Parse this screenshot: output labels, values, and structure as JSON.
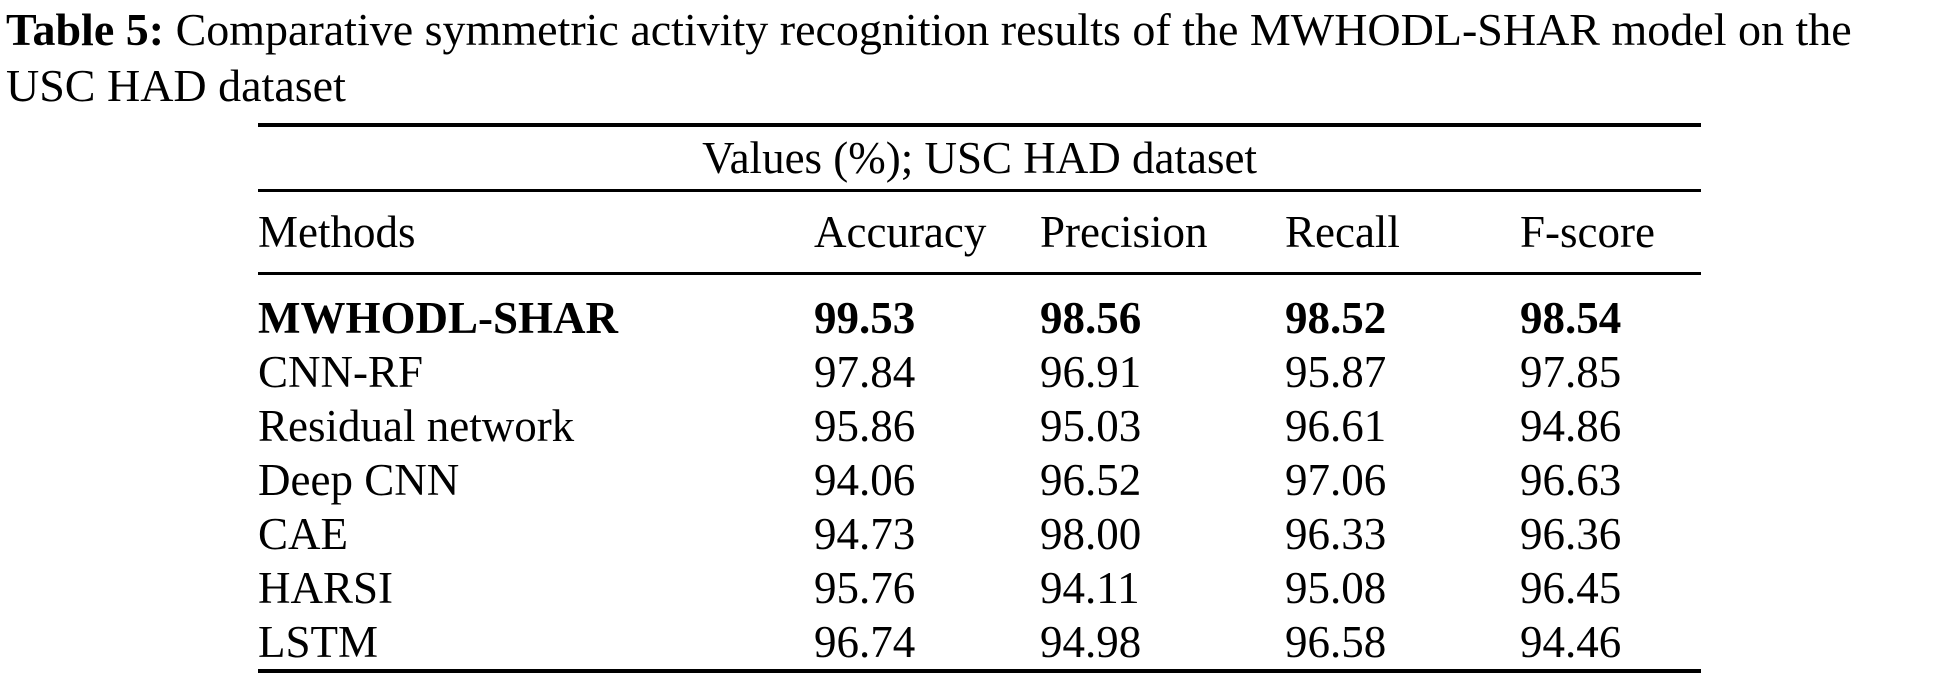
{
  "caption": {
    "label": "Table 5:",
    "line1_rest": " Comparative symmetric activity recognition results of the MWHODL-SHAR model on the",
    "line2": "USC HAD dataset"
  },
  "table": {
    "span_header": "Values (%); USC HAD dataset",
    "columns": [
      "Methods",
      "Accuracy",
      "Precision",
      "Recall",
      "F-score"
    ],
    "rows": [
      {
        "method": "MWHODL-SHAR",
        "accuracy": "99.53",
        "precision": "98.56",
        "recall": "98.52",
        "fscore": "98.54",
        "highlight": true
      },
      {
        "method": "CNN-RF",
        "accuracy": "97.84",
        "precision": "96.91",
        "recall": "95.87",
        "fscore": "97.85",
        "highlight": false
      },
      {
        "method": "Residual network",
        "accuracy": "95.86",
        "precision": "95.03",
        "recall": "96.61",
        "fscore": "94.86",
        "highlight": false
      },
      {
        "method": "Deep CNN",
        "accuracy": "94.06",
        "precision": "96.52",
        "recall": "97.06",
        "fscore": "96.63",
        "highlight": false
      },
      {
        "method": "CAE",
        "accuracy": "94.73",
        "precision": "98.00",
        "recall": "96.33",
        "fscore": "96.36",
        "highlight": false
      },
      {
        "method": "HARSI",
        "accuracy": "95.76",
        "precision": "94.11",
        "recall": "95.08",
        "fscore": "96.45",
        "highlight": false
      },
      {
        "method": "LSTM",
        "accuracy": "96.74",
        "precision": "94.98",
        "recall": "96.58",
        "fscore": "94.46",
        "highlight": false
      }
    ]
  },
  "colors": {
    "text": "#000000",
    "background": "#ffffff",
    "rule": "#000000"
  }
}
